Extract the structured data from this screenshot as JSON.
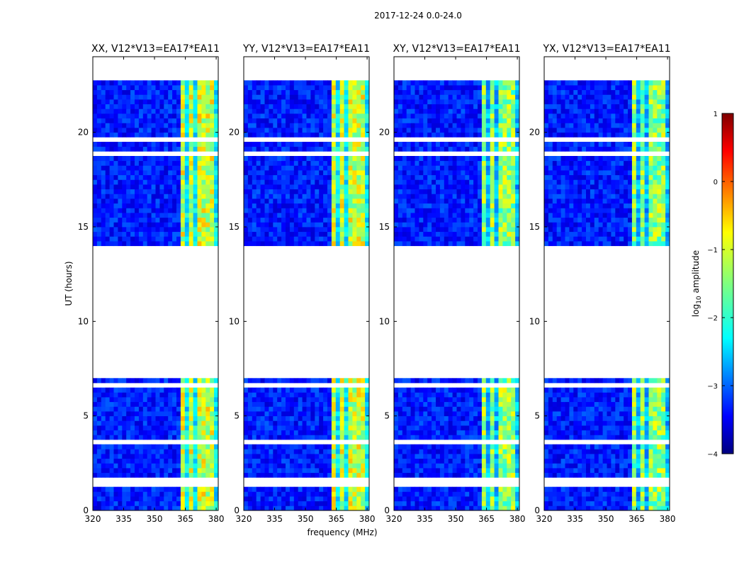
{
  "figure": {
    "suptitle": "2017-12-24 0.0-24.0",
    "ylabel": "UT (hours)",
    "xlabel": "frequency (MHz)"
  },
  "chart_data": {
    "type": "heatmap",
    "suptitle": "2017-12-24 0.0-24.0",
    "xlabel": "frequency (MHz)",
    "ylabel": "UT (hours)",
    "xlim": [
      320,
      381
    ],
    "ylim": [
      0,
      24
    ],
    "xticks": [
      320,
      335,
      350,
      365,
      380
    ],
    "yticks": [
      0,
      5,
      10,
      15,
      20
    ],
    "panels": [
      {
        "title": "XX, V12*V13=EA17*EA11"
      },
      {
        "title": "YY, V12*V13=EA17*EA11"
      },
      {
        "title": "XY, V12*V13=EA17*EA11"
      },
      {
        "title": "YX, V12*V13=EA17*EA11"
      }
    ],
    "data_coverage_hours": [
      [
        0,
        6.9
      ],
      [
        13.0,
        22.7
      ]
    ],
    "blank_rows_hours": [
      1.4,
      1.6,
      3.5,
      3.65,
      5.5,
      6.55,
      13.1,
      13.2,
      13.35,
      13.7,
      13.9,
      14.0,
      19.6,
      19.75,
      18.8
    ],
    "bright_band_mhz": [
      362,
      380
    ],
    "strong_channel_mhz": [
      [
        362,
        365.5
      ],
      [
        366.5,
        369.5
      ],
      [
        371,
        374
      ],
      [
        375.5,
        378.5
      ]
    ],
    "colorbar": {
      "label": "log$_{10}$ amplitude",
      "min": -4,
      "max": 1,
      "ticks": [
        1,
        0,
        -1,
        -2,
        -3,
        -4
      ],
      "colormap": "jet"
    }
  }
}
